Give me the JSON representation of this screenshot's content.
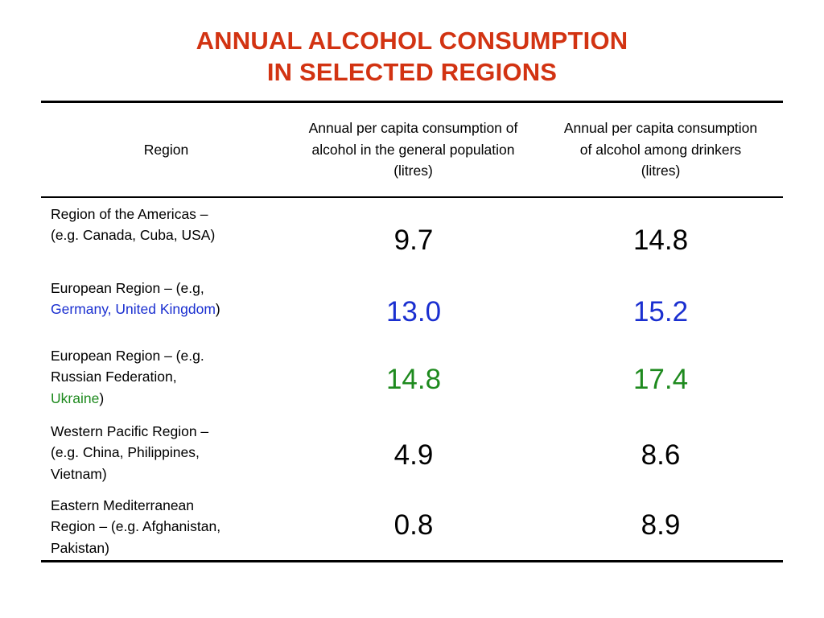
{
  "title": {
    "line1": "ANNUAL ALCOHOL CONSUMPTION",
    "line2": "IN SELECTED REGIONS"
  },
  "colors": {
    "title": "#d23312",
    "blue": "#1a2fd0",
    "green": "#1e8a1e",
    "text": "#000000"
  },
  "table": {
    "headers": {
      "region": "Region",
      "general_population": "Annual per capita consumption of alcohol in the general population (litres)",
      "drinkers": "Annual per capita consumption of alcohol among drinkers (litres)"
    },
    "rows": [
      {
        "region_lines": [
          "Region of the Americas –",
          "(e.g. Canada, Cuba, USA)"
        ],
        "general": "9.7",
        "drinkers": "14.8",
        "value_color": "text"
      },
      {
        "region_lines": [
          "European Region – (e.g,",
          "Germany, United Kingdom",
          ")"
        ],
        "general": "13.0",
        "drinkers": "15.2",
        "value_color": "blue"
      },
      {
        "region_lines": [
          "European Region – (e.g.",
          "Russian Federation,",
          "Ukraine",
          ")"
        ],
        "general": "14.8",
        "drinkers": "17.4",
        "value_color": "green"
      },
      {
        "region_lines": [
          "Western Pacific Region –",
          "(e.g. China, Philippines,",
          "Vietnam)"
        ],
        "general": "4.9",
        "drinkers": "8.6",
        "value_color": "text"
      },
      {
        "region_lines": [
          "Eastern Mediterranean",
          "Region – (e.g. Afghanistan,",
          "Pakistan)"
        ],
        "general": "0.8",
        "drinkers": "8.9",
        "value_color": "text"
      }
    ]
  }
}
